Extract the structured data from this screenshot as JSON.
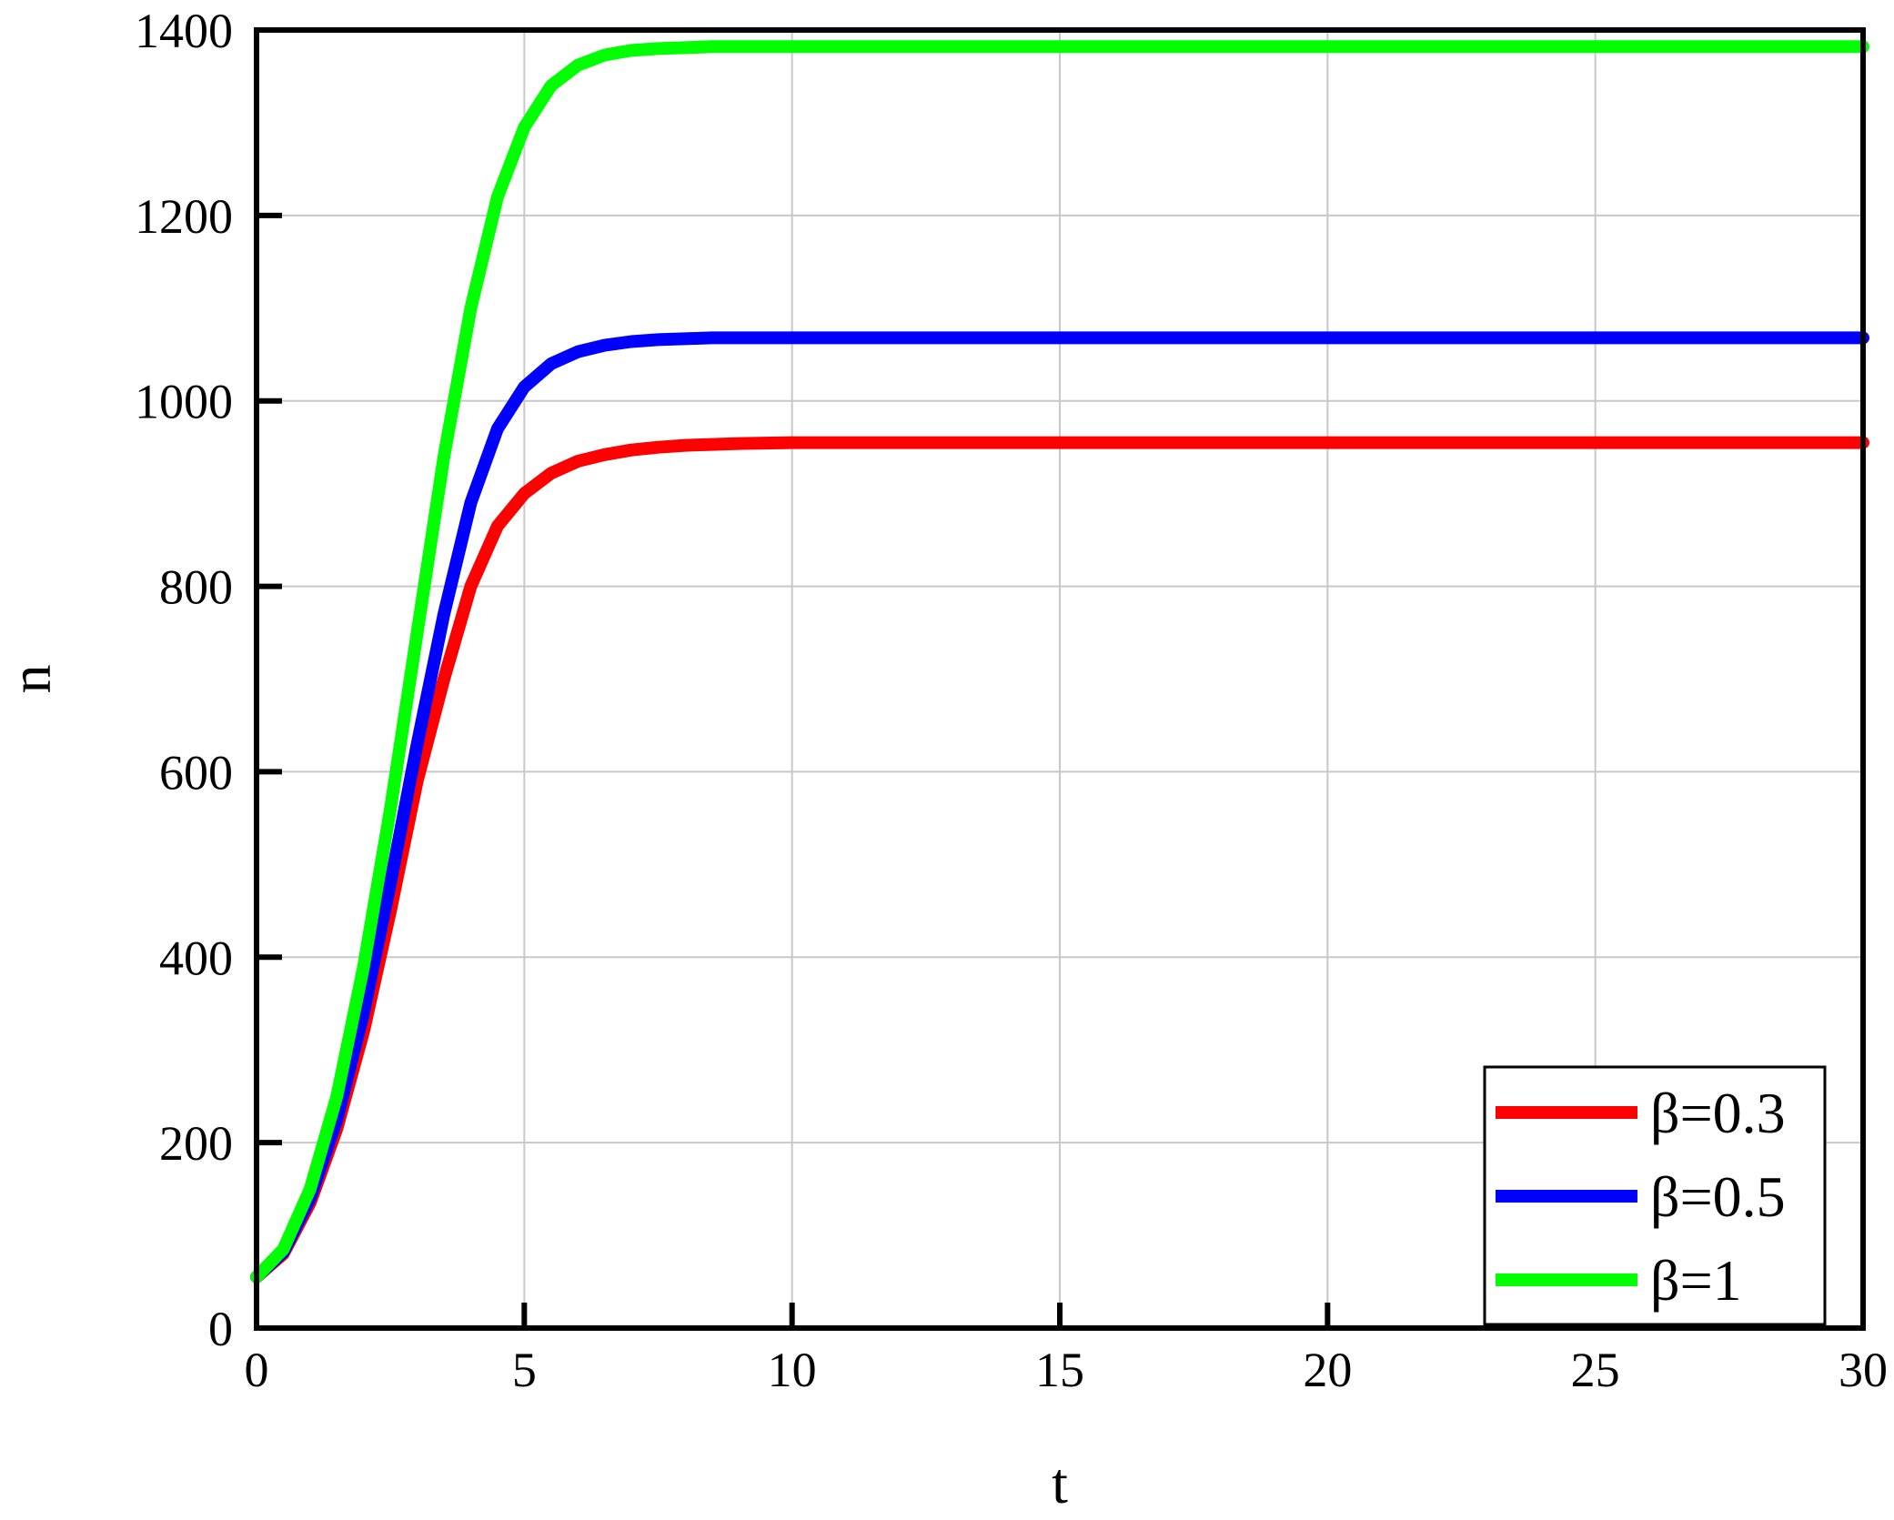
{
  "chart_data": {
    "type": "line",
    "title": "",
    "xlabel": "t",
    "ylabel": "n",
    "xlim": [
      0,
      30
    ],
    "ylim": [
      0,
      1400
    ],
    "xticks": [
      0,
      5,
      10,
      15,
      20,
      25,
      30
    ],
    "yticks": [
      0,
      200,
      400,
      600,
      800,
      1000,
      1200,
      1400
    ],
    "xtick_labels": [
      "0",
      "5",
      "10",
      "15",
      "20",
      "25",
      "30"
    ],
    "ytick_labels": [
      "0",
      "200",
      "400",
      "600",
      "800",
      "1000",
      "1200",
      "1400"
    ],
    "grid": true,
    "legend_position": "bottom-right",
    "x": [
      0,
      0.5,
      1,
      1.5,
      2,
      2.5,
      3,
      3.5,
      4,
      4.5,
      5,
      5.5,
      6,
      6.5,
      7,
      7.5,
      8,
      8.5,
      9,
      10,
      12,
      15,
      20,
      25,
      30
    ],
    "series": [
      {
        "name": "β=0.3",
        "color": "#ff0000",
        "values": [
          55,
          80,
          135,
          215,
          320,
          450,
          590,
          700,
          800,
          865,
          900,
          922,
          935,
          942,
          947,
          950,
          952,
          953,
          954,
          955,
          955,
          955,
          955,
          955,
          955
        ]
      },
      {
        "name": "β=0.5",
        "color": "#0000ff",
        "values": [
          55,
          82,
          140,
          225,
          340,
          480,
          630,
          770,
          890,
          970,
          1015,
          1040,
          1053,
          1060,
          1064,
          1066,
          1067,
          1068,
          1068,
          1068,
          1068,
          1068,
          1068,
          1068,
          1068
        ]
      },
      {
        "name": "β=1",
        "color": "#00ff00",
        "values": [
          55,
          85,
          150,
          250,
          390,
          560,
          750,
          940,
          1100,
          1220,
          1295,
          1340,
          1362,
          1373,
          1378,
          1380,
          1381,
          1382,
          1382,
          1382,
          1382,
          1382,
          1382,
          1382,
          1382
        ]
      }
    ]
  }
}
